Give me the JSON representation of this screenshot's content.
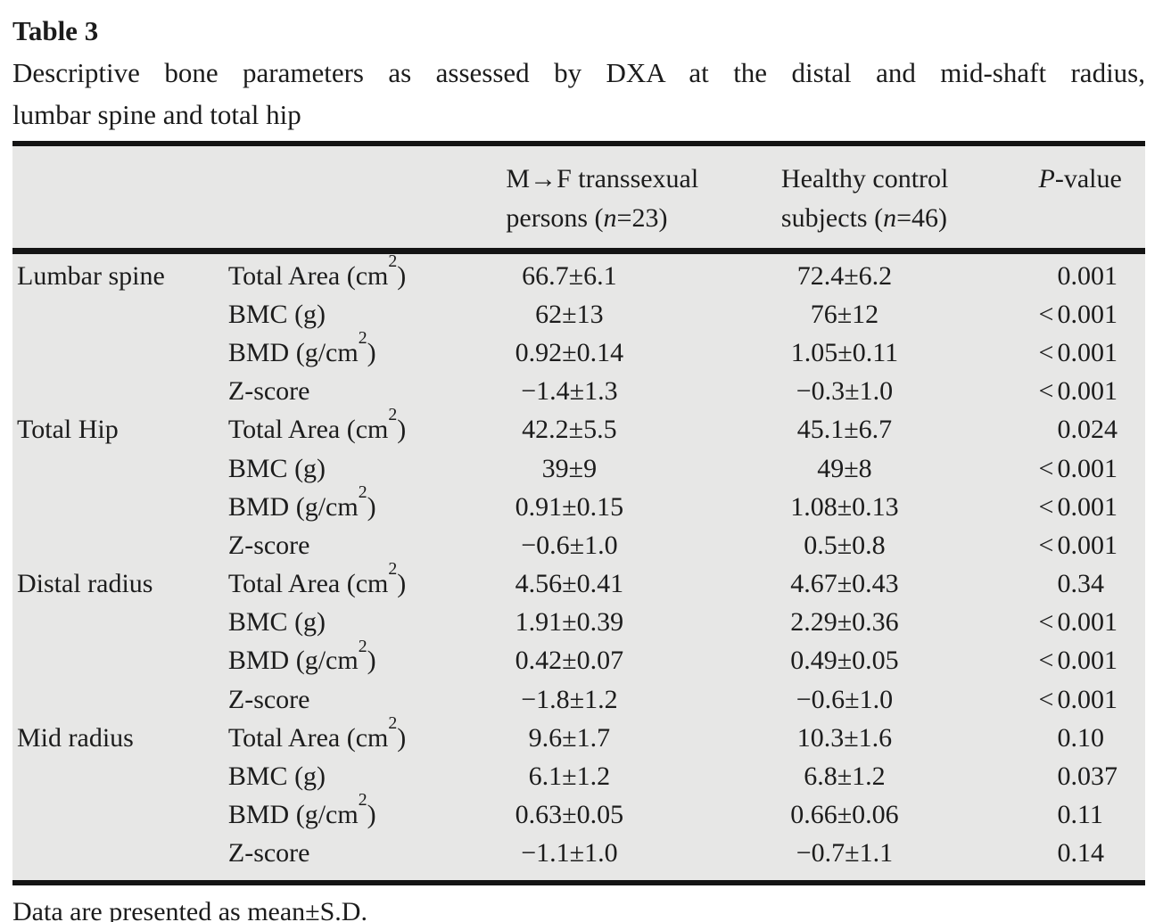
{
  "title": "Table 3",
  "caption": {
    "line1": "Descriptive bone parameters as assessed by DXA at the distal and mid-shaft radius,",
    "line2": "lumbar spine and total hip"
  },
  "header": {
    "col_group1": "",
    "col_group2": "",
    "col_mf": "M→F transsexual<br>persons (<i>n</i>=23)",
    "col_control": "Healthy control<br>subjects (<i>n</i>=46)",
    "col_p": "<i>P</i>-value"
  },
  "groups": [
    {
      "region": "Lumbar spine",
      "rows": [
        {
          "param": "Total Area (cm<sup>2</sup>)",
          "mf": "66.7±6.1",
          "hc": "72.4±6.2",
          "p_prefix": "",
          "p_value": "0.001"
        },
        {
          "param": "BMC (g)",
          "mf": "62±13",
          "hc": "76±12",
          "p_prefix": "<",
          "p_value": "0.001"
        },
        {
          "param": "BMD (g/cm<sup>2</sup>)",
          "mf": "0.92±0.14",
          "hc": "1.05±0.11",
          "p_prefix": "<",
          "p_value": "0.001"
        },
        {
          "param": "Z-score",
          "mf": "−1.4±1.3",
          "hc": "−0.3±1.0",
          "p_prefix": "<",
          "p_value": "0.001"
        }
      ]
    },
    {
      "region": "Total Hip",
      "rows": [
        {
          "param": "Total Area (cm<sup>2</sup>)",
          "mf": "42.2±5.5",
          "hc": "45.1±6.7",
          "p_prefix": "",
          "p_value": "0.024"
        },
        {
          "param": "BMC (g)",
          "mf": "39±9",
          "hc": "49±8",
          "p_prefix": "<",
          "p_value": "0.001"
        },
        {
          "param": "BMD (g/cm<sup>2</sup>)",
          "mf": "0.91±0.15",
          "hc": "1.08±0.13",
          "p_prefix": "<",
          "p_value": "0.001"
        },
        {
          "param": "Z-score",
          "mf": "−0.6±1.0",
          "hc": "0.5±0.8",
          "p_prefix": "<",
          "p_value": "0.001"
        }
      ]
    },
    {
      "region": "Distal radius",
      "rows": [
        {
          "param": "Total Area (cm<sup>2</sup>)",
          "mf": "4.56±0.41",
          "hc": "4.67±0.43",
          "p_prefix": "",
          "p_value": "0.34"
        },
        {
          "param": "BMC (g)",
          "mf": "1.91±0.39",
          "hc": "2.29±0.36",
          "p_prefix": "<",
          "p_value": "0.001"
        },
        {
          "param": "BMD (g/cm<sup>2</sup>)",
          "mf": "0.42±0.07",
          "hc": "0.49±0.05",
          "p_prefix": "<",
          "p_value": "0.001"
        },
        {
          "param": "Z-score",
          "mf": "−1.8±1.2",
          "hc": "−0.6±1.0",
          "p_prefix": "<",
          "p_value": "0.001"
        }
      ]
    },
    {
      "region": "Mid radius",
      "rows": [
        {
          "param": "Total Area (cm<sup>2</sup>)",
          "mf": "9.6±1.7",
          "hc": "10.3±1.6",
          "p_prefix": "",
          "p_value": "0.10"
        },
        {
          "param": "BMC (g)",
          "mf": "6.1±1.2",
          "hc": "6.8±1.2",
          "p_prefix": "",
          "p_value": "0.037"
        },
        {
          "param": "BMD (g/cm<sup>2</sup>)",
          "mf": "0.63±0.05",
          "hc": "0.66±0.06",
          "p_prefix": "",
          "p_value": "0.11"
        },
        {
          "param": "Z-score",
          "mf": "−1.1±1.0",
          "hc": "−0.7±1.1",
          "p_prefix": "",
          "p_value": "0.14"
        }
      ]
    }
  ],
  "footnote": "Data are presented as mean±S.D.",
  "colors": {
    "table_bg": "#e7e7e6",
    "rule": "#141414",
    "text": "#1c1c1c",
    "page_bg": "#ffffff"
  }
}
